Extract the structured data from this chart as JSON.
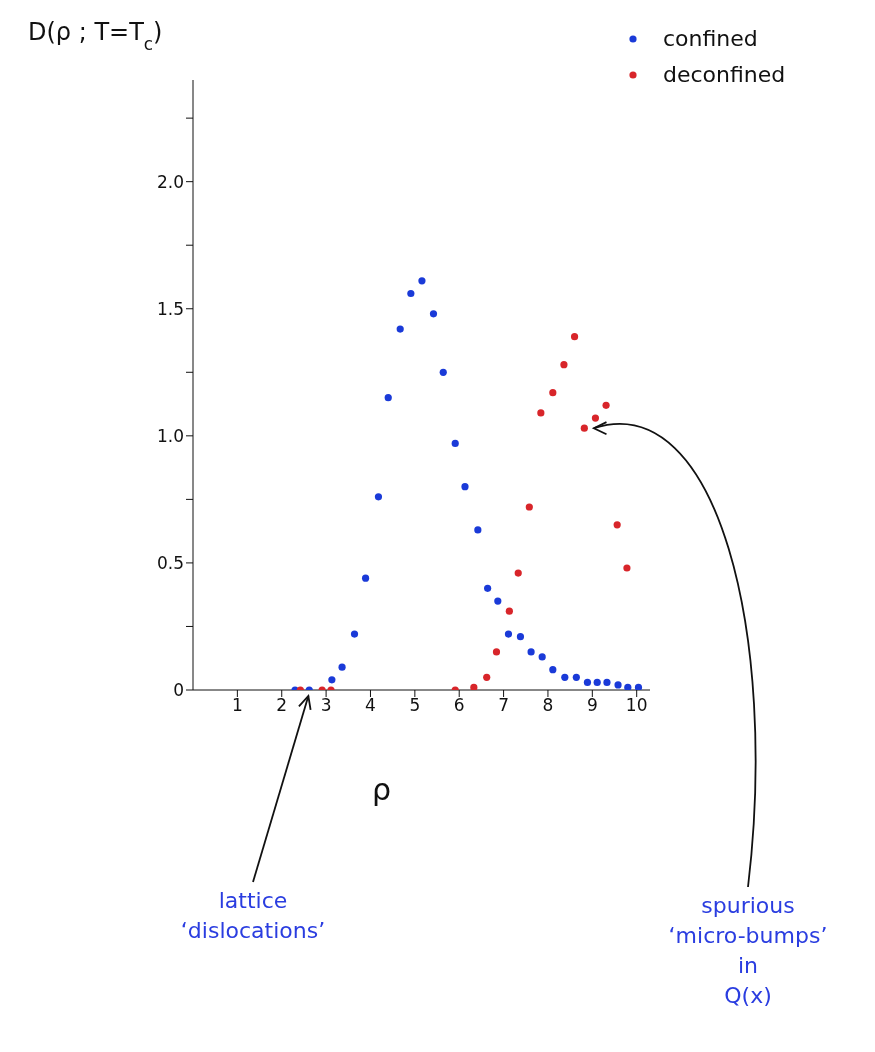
{
  "chart_data": {
    "type": "scatter",
    "ylabel": "D(ρ ; T=T$_{c}$)",
    "xlabel": "ρ",
    "xlim": [
      0,
      10.3
    ],
    "xticks": [
      1,
      2,
      3,
      4,
      5,
      6,
      7,
      8,
      9,
      10
    ],
    "ylim": [
      0,
      2.4
    ],
    "yticks": [
      0,
      {
        "value": 0.25,
        "label": null
      },
      0.5,
      {
        "value": 0.75,
        "label": null
      },
      {
        "value": 1,
        "label": "1.0"
      },
      {
        "value": 1.25,
        "label": null
      },
      1.5,
      {
        "value": 1.75,
        "label": null
      },
      {
        "value": 2,
        "label": "2.0"
      },
      {
        "value": 2.25,
        "label": null
      }
    ],
    "grid": false,
    "legend": "top right",
    "marker": "circle",
    "series": [
      {
        "name": "confined",
        "color": "#1a3ad8",
        "x": [
          2.3,
          2.62,
          3.13,
          3.36,
          3.64,
          3.89,
          4.18,
          4.4,
          4.67,
          4.91,
          5.16,
          5.42,
          5.64,
          5.91,
          6.13,
          6.42,
          6.64,
          6.87,
          7.11,
          7.38,
          7.62,
          7.87,
          8.11,
          8.38,
          8.64,
          8.89,
          9.11,
          9.33,
          9.58,
          9.8,
          10.04
        ],
        "values": [
          0,
          0,
          0.04,
          0.09,
          0.22,
          0.44,
          0.76,
          1.15,
          1.42,
          1.56,
          1.61,
          1.48,
          1.25,
          0.97,
          0.8,
          0.63,
          0.4,
          0.35,
          0.22,
          0.21,
          0.15,
          0.13,
          0.08,
          0.05,
          0.05,
          0.03,
          0.03,
          0.03,
          0.02,
          0.01,
          0.01
        ]
      },
      {
        "name": "deconfined",
        "color": "#d8252a",
        "x": [
          2.42,
          2.91,
          3.11,
          5.91,
          6.33,
          6.62,
          6.84,
          7.13,
          7.33,
          7.58,
          7.84,
          8.11,
          8.36,
          8.6,
          8.82,
          9.07,
          9.31,
          9.56,
          9.78
        ],
        "values": [
          0,
          0,
          0,
          0,
          0.01,
          0.05,
          0.15,
          0.31,
          0.46,
          0.72,
          1.09,
          1.17,
          1.28,
          1.39,
          1.03,
          1.07,
          1.12,
          0.65,
          0.48
        ]
      }
    ],
    "annotations": [
      {
        "text": "lattice\n‘dislocations’",
        "x": 2.6,
        "y": 0
      },
      {
        "text": "spurious\n‘micro-bumps’\nin\nQ(x)",
        "x": 8.9,
        "y": 1.03
      }
    ]
  }
}
